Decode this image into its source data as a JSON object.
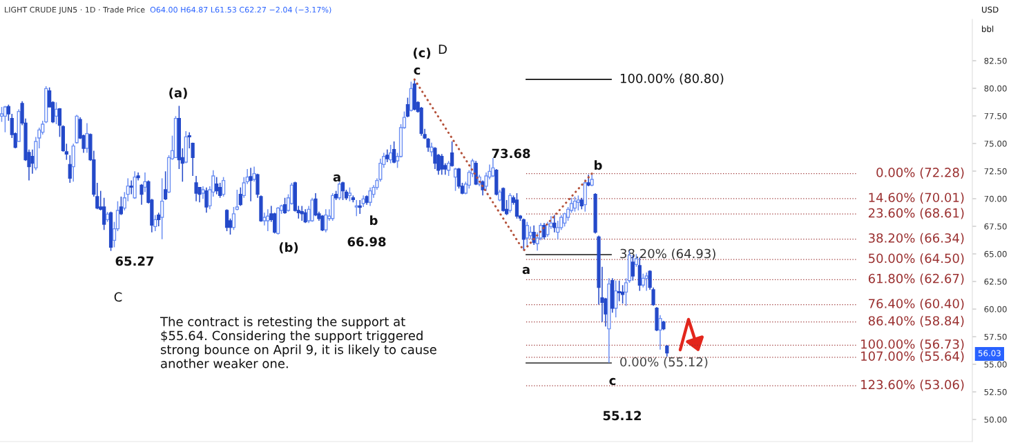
{
  "chart_data": {
    "type": "candlestick",
    "title": "LIGHT CRUDE JUN5 · 1D · Trade Price",
    "subtitle": "O64.00 H64.87 L61.53 C62.27 −2.04 (−3.17%)",
    "categories": [
      null,
      null,
      null,
      null,
      null,
      null,
      null,
      null,
      null,
      null,
      null,
      null,
      null,
      null,
      null,
      null,
      null,
      null,
      null,
      null,
      null,
      null,
      null,
      null,
      null,
      null,
      null,
      null,
      null,
      null,
      null,
      null,
      null,
      null,
      null,
      null,
      null,
      null,
      null,
      null,
      null,
      null,
      null,
      null,
      null,
      null,
      null,
      null,
      null,
      null,
      null,
      null,
      null,
      null,
      null,
      null,
      null,
      null,
      null,
      null,
      null,
      null,
      null,
      null,
      null,
      null,
      null,
      null,
      null,
      null,
      null,
      null,
      null,
      null,
      null,
      null,
      null,
      null,
      null,
      null,
      null,
      null,
      null,
      null,
      null,
      null,
      null,
      null,
      null,
      null,
      null,
      null,
      null,
      null,
      null,
      null,
      null,
      null,
      null,
      null,
      null,
      null,
      null,
      null,
      null,
      null,
      null,
      null,
      null,
      null,
      null,
      null,
      null,
      null,
      null,
      null,
      null,
      null,
      null,
      null,
      null,
      null,
      null,
      null,
      null,
      null,
      null,
      null,
      null,
      null,
      null,
      null,
      null,
      null,
      null,
      null,
      null,
      null,
      null,
      null,
      null,
      null,
      null,
      null,
      null,
      null,
      null,
      null,
      null,
      null,
      null,
      null,
      null,
      null,
      null,
      null,
      null,
      null,
      null,
      null,
      null,
      null,
      null,
      null,
      null,
      null,
      null,
      null,
      null,
      null,
      null,
      null,
      null,
      null,
      null,
      null,
      null,
      null,
      null,
      null,
      null,
      null,
      null,
      null,
      null,
      null,
      null,
      null,
      null,
      null,
      null,
      null,
      null,
      null,
      null,
      null,
      null,
      null,
      null,
      null,
      null,
      null,
      null,
      null,
      null,
      null,
      null,
      null,
      null,
      null,
      null,
      null,
      null,
      null,
      null,
      null,
      null,
      null,
      null,
      null,
      null,
      null,
      null,
      null,
      null,
      null,
      null,
      null,
      null,
      null,
      null,
      null,
      null,
      null,
      null,
      null,
      null,
      null,
      null,
      null,
      null,
      null,
      null,
      null,
      null,
      null,
      null,
      null,
      null,
      null,
      null,
      null,
      null,
      null,
      null,
      null,
      null,
      null,
      null,
      null,
      null,
      null,
      null,
      null,
      null,
      null,
      null,
      null,
      null,
      null,
      null,
      null,
      null,
      null,
      null,
      null,
      null,
      null,
      null,
      null,
      null,
      null,
      null,
      null,
      null
    ],
    "ohlc": [
      [
        77.48,
        78.31,
        76.96,
        77.69
      ],
      [
        77.48,
        78.41,
        76.02,
        78.31
      ],
      [
        78.35,
        78.52,
        77.06,
        77.69
      ],
      [
        77.27,
        77.69,
        75.5,
        75.81
      ],
      [
        75.9,
        76.0,
        74.56,
        74.66
      ],
      [
        75.19,
        78.1,
        75.19,
        77.9
      ],
      [
        78.63,
        78.83,
        76.65,
        76.85
      ],
      [
        76.85,
        77.27,
        73.42,
        73.52
      ],
      [
        74.19,
        74.46,
        71.65,
        72.9
      ],
      [
        73.83,
        74.46,
        72.27,
        73.21
      ],
      [
        72.79,
        75.6,
        72.58,
        75.19
      ],
      [
        75.5,
        76.44,
        74.56,
        76.23
      ],
      [
        76.02,
        77.06,
        75.81,
        76.75
      ],
      [
        76.96,
        80.19,
        76.85,
        79.98
      ],
      [
        79.77,
        80.08,
        78.31,
        78.31
      ],
      [
        78.73,
        78.83,
        76.85,
        76.96
      ],
      [
        77.48,
        78.73,
        76.75,
        78.1
      ],
      [
        78.15,
        78.21,
        75.6,
        76.65
      ],
      [
        76.54,
        76.65,
        74.25,
        74.35
      ],
      [
        74.25,
        74.98,
        73.52,
        74.04
      ],
      [
        73.1,
        73.94,
        71.44,
        71.85
      ],
      [
        72.9,
        74.98,
        71.54,
        74.77
      ],
      [
        75.08,
        77.6,
        74.98,
        77.48
      ],
      [
        77.17,
        77.37,
        75.4,
        75.5
      ],
      [
        75.71,
        75.81,
        74.15,
        74.56
      ],
      [
        74.56,
        76.85,
        74.15,
        75.9
      ],
      [
        75.81,
        75.9,
        73.42,
        73.52
      ],
      [
        73.52,
        74.35,
        70.19,
        70.4
      ],
      [
        70.19,
        71.44,
        69.04,
        69.15
      ],
      [
        69.25,
        70.71,
        68.94,
        69.04
      ],
      [
        69.25,
        70.08,
        67.17,
        67.69
      ],
      [
        68.1,
        68.8,
        67.9,
        68.6
      ],
      [
        68.73,
        68.83,
        65.27,
        65.6
      ],
      [
        66.23,
        67.9,
        65.6,
        67.27
      ],
      [
        67.27,
        69.77,
        67.06,
        68.94
      ],
      [
        69.25,
        70.19,
        68.52,
        68.63
      ],
      [
        69.15,
        70.6,
        68.94,
        70.08
      ],
      [
        70.4,
        71.85,
        69.77,
        71.15
      ],
      [
        71.15,
        71.65,
        70.4,
        71.04
      ],
      [
        70.08,
        72.48,
        69.98,
        71.96
      ],
      [
        72.06,
        72.38,
        71.65,
        71.9
      ],
      [
        71.23,
        71.33,
        69.46,
        70.4
      ],
      [
        71.04,
        72.38,
        70.6,
        71.54
      ],
      [
        71.54,
        71.65,
        69.56,
        69.67
      ],
      [
        69.88,
        69.98,
        66.96,
        67.6
      ],
      [
        67.48,
        68.52,
        67.06,
        68.1
      ],
      [
        68.52,
        68.73,
        67.5,
        68.1
      ],
      [
        68.31,
        71.85,
        66.33,
        69.77
      ],
      [
        70.81,
        72.48,
        69.88,
        69.98
      ],
      [
        70.6,
        73.94,
        70.5,
        73.73
      ],
      [
        73.62,
        75.71,
        73.52,
        74.35
      ],
      [
        73.73,
        77.48,
        73.73,
        77.27
      ],
      [
        77.27,
        78.41,
        72.69,
        73.52
      ],
      [
        73.73,
        74.56,
        71.54,
        73.21
      ],
      [
        73.31,
        76.12,
        73.21,
        75.6
      ],
      [
        75.71,
        76.02,
        74.56,
        75.6
      ],
      [
        75.02,
        75.08,
        72.06,
        73.73
      ],
      [
        71.44,
        72.06,
        69.77,
        70.5
      ],
      [
        71.02,
        71.02,
        69.67,
        70.4
      ],
      [
        70.5,
        71.13,
        69.98,
        70.81
      ],
      [
        70.71,
        71.02,
        68.73,
        69.25
      ],
      [
        69.35,
        71.13,
        69.04,
        70.81
      ],
      [
        70.6,
        72.58,
        70.19,
        72.06
      ],
      [
        71.33,
        71.96,
        70.4,
        70.71
      ],
      [
        71.02,
        71.44,
        70.08,
        70.29
      ],
      [
        70.4,
        71.96,
        70.19,
        71.65
      ],
      [
        68.94,
        69.04,
        67.06,
        67.4
      ],
      [
        68.0,
        68.2,
        66.75,
        67.4
      ],
      [
        67.4,
        69.25,
        67.17,
        68.63
      ],
      [
        69.04,
        70.81,
        68.94,
        69.25
      ],
      [
        70.4,
        71.02,
        69.35,
        69.46
      ],
      [
        70.29,
        71.96,
        70.08,
        71.44
      ],
      [
        71.54,
        72.69,
        71.33,
        71.96
      ],
      [
        72.0,
        72.79,
        69.77,
        71.65
      ],
      [
        71.75,
        72.9,
        71.54,
        72.27
      ],
      [
        72.17,
        72.27,
        70.08,
        70.4
      ],
      [
        70.19,
        70.29,
        67.9,
        68.0
      ],
      [
        68.0,
        68.73,
        67.58,
        68.31
      ],
      [
        68.0,
        69.04,
        67.06,
        68.42
      ],
      [
        68.63,
        69.35,
        67.9,
        68.1
      ],
      [
        68.63,
        68.73,
        66.85,
        66.96
      ],
      [
        66.85,
        69.25,
        66.75,
        69.15
      ],
      [
        68.94,
        69.46,
        68.63,
        69.35
      ],
      [
        69.46,
        70.08,
        68.63,
        68.73
      ],
      [
        68.94,
        70.4,
        68.83,
        70.08
      ],
      [
        69.56,
        71.44,
        69.46,
        71.23
      ],
      [
        71.44,
        71.54,
        68.83,
        68.94
      ],
      [
        68.94,
        69.35,
        68.2,
        68.73
      ],
      [
        68.83,
        69.35,
        68.0,
        68.63
      ],
      [
        68.73,
        69.04,
        67.79,
        67.9
      ],
      [
        68.0,
        69.35,
        67.79,
        69.04
      ],
      [
        68.0,
        70.08,
        67.9,
        69.88
      ],
      [
        69.98,
        70.5,
        68.42,
        68.52
      ],
      [
        68.63,
        68.83,
        68.0,
        68.2
      ],
      [
        68.42,
        68.52,
        67.06,
        67.17
      ],
      [
        67.17,
        69.04,
        66.96,
        68.52
      ],
      [
        68.2,
        69.04,
        68.0,
        68.42
      ],
      [
        68.2,
        70.5,
        68.0,
        70.29
      ],
      [
        70.4,
        70.71,
        69.88,
        70.08
      ],
      [
        70.08,
        71.54,
        69.88,
        71.33
      ],
      [
        71.44,
        71.54,
        69.88,
        70.71
      ],
      [
        70.6,
        70.81,
        69.88,
        70.08
      ],
      [
        70.29,
        71.02,
        69.77,
        70.5
      ],
      [
        70.08,
        70.29,
        69.67,
        69.92
      ],
      [
        69.25,
        69.88,
        68.42,
        69.35
      ],
      [
        69.35,
        69.88,
        68.63,
        69.21
      ],
      [
        69.56,
        70.29,
        69.25,
        69.98
      ],
      [
        70.19,
        70.29,
        69.46,
        69.67
      ],
      [
        69.67,
        71.02,
        69.35,
        70.71
      ],
      [
        70.4,
        71.23,
        70.08,
        71.02
      ],
      [
        71.02,
        71.85,
        70.81,
        71.65
      ],
      [
        71.75,
        73.62,
        71.54,
        73.21
      ],
      [
        73.1,
        74.15,
        72.79,
        73.83
      ],
      [
        73.94,
        74.46,
        73.31,
        73.62
      ],
      [
        73.52,
        74.88,
        73.21,
        74.15
      ],
      [
        74.46,
        75.19,
        73.21,
        73.31
      ],
      [
        73.42,
        74.15,
        72.79,
        73.83
      ],
      [
        73.83,
        76.75,
        73.73,
        76.44
      ],
      [
        76.44,
        77.9,
        76.33,
        77.37
      ],
      [
        78.52,
        79.15,
        77.37,
        77.48
      ],
      [
        78.0,
        80.6,
        77.9,
        79.98
      ],
      [
        80.4,
        80.8,
        78.0,
        78.1
      ],
      [
        78.73,
        78.83,
        77.79,
        77.9
      ],
      [
        78.21,
        78.31,
        75.71,
        75.92
      ],
      [
        75.81,
        76.33,
        75.4,
        75.5
      ],
      [
        75.4,
        75.5,
        74.25,
        74.67
      ],
      [
        74.25,
        75.08,
        73.83,
        74.67
      ],
      [
        74.56,
        74.67,
        72.69,
        73.21
      ],
      [
        73.94,
        74.04,
        72.17,
        72.58
      ],
      [
        73.83,
        74.04,
        72.17,
        72.69
      ],
      [
        73.0,
        73.21,
        72.17,
        72.69
      ],
      [
        72.58,
        73.42,
        72.06,
        73.21
      ],
      [
        74.15,
        75.19,
        72.9,
        73.0
      ],
      [
        71.96,
        72.79,
        70.71,
        72.69
      ],
      [
        72.69,
        72.79,
        70.92,
        71.13
      ],
      [
        71.13,
        71.44,
        70.4,
        70.5
      ],
      [
        70.5,
        71.54,
        70.4,
        71.33
      ],
      [
        71.23,
        72.58,
        70.92,
        72.38
      ],
      [
        72.27,
        73.62,
        71.96,
        73.42
      ],
      [
        73.21,
        73.42,
        71.23,
        71.33
      ],
      [
        71.33,
        72.17,
        71.13,
        71.96
      ],
      [
        71.54,
        71.65,
        70.29,
        70.81
      ],
      [
        71.13,
        72.38,
        70.71,
        72.06
      ],
      [
        71.96,
        73.1,
        71.75,
        72.48
      ],
      [
        72.06,
        73.68,
        71.96,
        72.79
      ],
      [
        72.58,
        72.69,
        70.29,
        70.4
      ],
      [
        69.88,
        70.81,
        69.77,
        70.6
      ],
      [
        70.92,
        71.02,
        68.83,
        68.94
      ],
      [
        69.04,
        69.88,
        68.52,
        68.63
      ],
      [
        68.94,
        70.5,
        68.73,
        70.29
      ],
      [
        70.08,
        70.29,
        69.46,
        69.67
      ],
      [
        69.88,
        70.5,
        68.2,
        68.42
      ],
      [
        68.42,
        68.52,
        68.0,
        68.25
      ],
      [
        68.1,
        68.2,
        65.3,
        66.33
      ],
      [
        66.44,
        67.9,
        65.71,
        67.58
      ],
      [
        66.65,
        67.48,
        66.33,
        66.96
      ],
      [
        66.96,
        67.58,
        65.81,
        66.02
      ],
      [
        65.92,
        66.96,
        65.29,
        66.44
      ],
      [
        66.44,
        67.79,
        66.23,
        67.58
      ],
      [
        67.58,
        67.79,
        66.33,
        66.54
      ],
      [
        66.75,
        67.9,
        66.54,
        67.69
      ],
      [
        67.48,
        68.42,
        67.27,
        67.79
      ],
      [
        67.79,
        68.52,
        66.96,
        67.38
      ],
      [
        66.96,
        68.0,
        66.33,
        67.38
      ],
      [
        67.38,
        68.52,
        67.17,
        68.31
      ],
      [
        67.79,
        68.73,
        67.48,
        68.63
      ],
      [
        68.31,
        69.25,
        68.0,
        69.04
      ],
      [
        68.94,
        70.08,
        68.73,
        69.56
      ],
      [
        69.15,
        70.19,
        68.83,
        69.77
      ],
      [
        69.67,
        70.29,
        68.94,
        69.88
      ],
      [
        69.88,
        70.08,
        69.04,
        69.35
      ],
      [
        69.46,
        71.75,
        68.83,
        71.44
      ],
      [
        71.44,
        72.17,
        71.13,
        71.23
      ],
      [
        71.23,
        72.28,
        71.13,
        71.75
      ],
      [
        70.4,
        70.5,
        66.85,
        66.96
      ],
      [
        66.54,
        66.65,
        60.4,
        61.96
      ],
      [
        61.02,
        63.83,
        58.83,
        60.6
      ],
      [
        60.92,
        61.02,
        58.42,
        59.56
      ],
      [
        58.21,
        62.79,
        55.12,
        62.27
      ],
      [
        62.58,
        62.79,
        59.67,
        60.08
      ],
      [
        60.08,
        62.58,
        59.25,
        61.65
      ],
      [
        61.58,
        62.58,
        60.71,
        61.48
      ],
      [
        61.54,
        62.17,
        60.5,
        61.33
      ],
      [
        61.54,
        62.79,
        60.29,
        62.38
      ],
      [
        62.58,
        65.29,
        62.38,
        64.88
      ],
      [
        64.25,
        64.88,
        62.58,
        63.0
      ],
      [
        64.04,
        64.98,
        63.83,
        64.56
      ],
      [
        63.94,
        64.67,
        61.65,
        62.17
      ],
      [
        62.17,
        63.21,
        61.96,
        62.79
      ],
      [
        62.79,
        63.31,
        61.65,
        63.0
      ],
      [
        63.42,
        63.52,
        61.75,
        61.96
      ],
      [
        61.75,
        61.96,
        60.29,
        60.4
      ],
      [
        60.08,
        60.19,
        58.0,
        58.1
      ],
      [
        58.1,
        59.46,
        56.33,
        59.15
      ],
      [
        58.83,
        58.94,
        58.1,
        58.21
      ],
      [
        56.65,
        56.75,
        55.71,
        56.03
      ],
      null,
      null,
      null,
      null,
      null,
      null,
      null,
      null,
      null,
      null,
      null,
      null,
      null,
      null,
      null,
      null,
      null,
      null,
      null,
      null,
      null,
      null,
      null,
      null,
      null,
      null,
      null,
      null,
      null,
      null,
      null,
      null,
      null,
      null,
      null,
      null,
      null,
      null,
      null,
      null,
      null,
      null,
      null,
      null,
      null,
      null,
      null,
      null,
      null,
      null,
      null,
      null,
      null,
      null,
      null,
      null,
      null,
      null,
      null,
      null,
      null,
      null,
      null,
      null,
      null,
      null,
      null,
      null,
      null,
      null,
      null,
      null,
      null,
      null,
      null,
      null,
      null,
      null,
      null,
      null,
      null,
      null,
      null,
      null,
      null,
      null,
      null,
      null,
      null
    ],
    "colors": [
      "#6b8ef2",
      "#6b8ef2",
      "#2449c9",
      "#2449c9",
      "#2449c9",
      "#6b8ef2",
      "#2449c9",
      "#2449c9",
      "#2449c9",
      "#2449c9",
      "#6b8ef2",
      "#6b8ef2",
      "#6b8ef2",
      "#6b8ef2",
      "#2449c9",
      "#2449c9",
      "#6b8ef2",
      "#2449c9",
      "#2449c9",
      "#2449c9",
      "#2449c9",
      "#6b8ef2",
      "#6b8ef2",
      "#2449c9",
      "#2449c9",
      "#6b8ef2",
      "#2449c9",
      "#2449c9",
      "#2449c9",
      "#2449c9",
      "#2449c9",
      "#6b8ef2",
      "#2449c9",
      "#6b8ef2",
      "#6b8ef2",
      "#2449c9",
      "#6b8ef2",
      "#6b8ef2",
      "#2449c9",
      "#6b8ef2",
      "#2449c9",
      "#2449c9",
      "#6b8ef2",
      "#2449c9",
      "#2449c9",
      "#6b8ef2",
      "#2449c9",
      "#6b8ef2",
      "#2449c9",
      "#6b8ef2",
      "#6b8ef2",
      "#6b8ef2",
      "#2449c9",
      "#2449c9",
      "#6b8ef2",
      "#2449c9",
      "#2449c9",
      "#2449c9",
      "#2449c9",
      "#6b8ef2",
      "#2449c9",
      "#6b8ef2",
      "#6b8ef2",
      "#2449c9",
      "#2449c9",
      "#6b8ef2",
      "#2449c9",
      "#2449c9",
      "#6b8ef2",
      "#6b8ef2",
      "#2449c9",
      "#6b8ef2",
      "#6b8ef2",
      "#2449c9",
      "#6b8ef2",
      "#2449c9",
      "#2449c9",
      "#6b8ef2",
      "#6b8ef2",
      "#2449c9",
      "#2449c9",
      "#6b8ef2",
      "#6b8ef2",
      "#2449c9",
      "#6b8ef2",
      "#6b8ef2",
      "#2449c9",
      "#2449c9",
      "#2449c9",
      "#2449c9",
      "#6b8ef2",
      "#6b8ef2",
      "#2449c9",
      "#2449c9",
      "#2449c9",
      "#6b8ef2",
      "#6b8ef2",
      "#6b8ef2",
      "#2449c9",
      "#6b8ef2",
      "#2449c9",
      "#2449c9",
      "#6b8ef2",
      "#2449c9",
      "#6b8ef2",
      "#2449c9",
      "#6b8ef2",
      "#2449c9",
      "#6b8ef2",
      "#6b8ef2",
      "#6b8ef2",
      "#6b8ef2",
      "#6b8ef2",
      "#2449c9",
      "#6b8ef2",
      "#2449c9",
      "#6b8ef2",
      "#6b8ef2",
      "#6b8ef2",
      "#2449c9",
      "#6b8ef2",
      "#2449c9",
      "#2449c9",
      "#2449c9",
      "#2449c9",
      "#2449c9",
      "#6b8ef2",
      "#2449c9",
      "#2449c9",
      "#2449c9",
      "#2449c9",
      "#6b8ef2",
      "#2449c9",
      "#6b8ef2",
      "#2449c9",
      "#2449c9",
      "#6b8ef2",
      "#6b8ef2",
      "#6b8ef2",
      "#2449c9",
      "#6b8ef2",
      "#2449c9",
      "#6b8ef2",
      "#6b8ef2",
      "#6b8ef2",
      "#2449c9",
      "#6b8ef2",
      "#2449c9",
      "#2449c9",
      "#6b8ef2",
      "#2449c9",
      "#2449c9",
      "#2449c9",
      "#2449c9",
      "#6b8ef2",
      "#6b8ef2",
      "#2449c9",
      "#6b8ef2",
      "#6b8ef2",
      "#2449c9",
      "#6b8ef2",
      "#6b8ef2",
      "#2449c9",
      "#6b8ef2",
      "#6b8ef2",
      "#6b8ef2",
      "#6b8ef2",
      "#6b8ef2",
      "#6b8ef2",
      "#6b8ef2",
      "#2449c9",
      "#6b8ef2",
      "#2449c9",
      "#6b8ef2",
      "#2449c9",
      "#2449c9",
      "#2449c9",
      "#2449c9",
      "#6b8ef2",
      "#2449c9",
      "#6b8ef2",
      "#2449c9",
      "#2449c9",
      "#6b8ef2",
      "#6b8ef2",
      "#2449c9",
      "#6b8ef2",
      "#2449c9",
      "#6b8ef2",
      "#6b8ef2",
      "#2449c9",
      "#2449c9",
      "#2449c9",
      "#6b8ef2",
      "#2449c9",
      "#2449c9",
      null,
      null,
      null,
      null,
      null,
      null,
      null,
      null,
      null,
      null,
      null,
      null,
      null,
      null,
      null,
      null,
      null,
      null,
      null,
      null,
      null,
      null,
      null,
      null,
      null,
      null,
      null,
      null,
      null,
      null,
      null,
      null,
      null,
      null,
      null,
      null,
      null,
      null,
      null,
      null,
      null,
      null,
      null,
      null,
      null,
      null,
      null,
      null,
      null,
      null,
      null,
      null,
      null,
      null,
      null,
      null,
      null,
      null,
      null,
      null,
      null,
      null,
      null,
      null,
      null,
      null,
      null,
      null,
      null,
      null,
      null,
      null,
      null,
      null,
      null,
      null,
      null,
      null,
      null,
      null,
      null,
      null,
      null,
      null,
      null,
      null,
      null,
      null,
      null
    ],
    "series": [
      {
        "type": "line",
        "color": "#b5533c",
        "line_style": "dotted",
        "values": [
          null,
          null,
          null,
          null,
          null,
          null,
          null,
          null,
          null,
          null,
          null,
          null,
          null,
          null,
          null,
          null,
          null,
          null,
          null,
          null,
          null,
          null,
          null,
          null,
          null,
          null,
          null,
          null,
          null,
          null,
          null,
          null,
          null,
          null,
          null,
          null,
          null,
          null,
          null,
          null,
          null,
          null,
          null,
          null,
          null,
          null,
          null,
          null,
          null,
          null,
          null,
          null,
          null,
          null,
          null,
          null,
          null,
          null,
          null,
          null,
          null,
          null,
          null,
          null,
          null,
          null,
          null,
          null,
          null,
          null,
          null,
          null,
          null,
          null,
          null,
          null,
          null,
          null,
          null,
          null,
          null,
          null,
          null,
          null,
          null,
          null,
          null,
          null,
          null,
          null,
          null,
          null,
          null,
          null,
          null,
          null,
          null,
          null,
          null,
          null,
          null,
          null,
          null,
          null,
          null,
          null,
          null,
          null,
          null,
          null,
          null,
          null,
          null,
          null,
          null,
          null,
          null,
          null,
          null,
          null,
          null,
          80.8,
          null,
          null,
          null,
          null,
          null,
          null,
          null,
          null,
          null,
          null,
          null,
          null,
          null,
          null,
          null,
          null,
          null,
          null,
          null,
          null,
          null,
          null,
          null,
          null,
          null,
          null,
          null,
          null,
          null,
          null,
          null,
          65.3,
          null,
          null,
          null,
          null,
          null,
          null,
          null,
          null,
          null,
          null,
          null,
          null,
          null,
          null,
          null,
          null,
          null,
          null,
          null,
          72.28,
          null,
          null,
          null,
          null,
          null,
          null,
          null,
          null,
          null,
          null,
          null,
          null,
          null,
          null,
          null,
          null,
          null,
          null,
          null,
          null,
          null,
          null,
          null,
          null,
          null,
          null,
          null,
          null,
          null,
          null,
          null,
          null,
          null,
          null,
          null,
          null,
          null,
          null,
          null,
          null,
          null,
          null,
          null,
          null,
          null,
          null,
          null,
          null,
          null,
          null,
          null,
          null,
          null,
          null,
          null,
          null,
          null,
          null,
          null,
          null,
          null,
          null,
          null,
          null,
          null,
          null,
          null,
          null,
          null,
          null,
          null,
          null,
          null,
          null,
          null,
          null,
          null,
          null,
          null,
          null,
          null,
          null,
          null,
          null,
          null,
          null,
          null,
          null,
          null,
          null,
          null,
          null,
          null,
          null,
          null,
          null,
          null,
          null,
          null,
          null,
          null,
          null,
          null,
          null,
          null,
          null,
          null,
          null,
          null,
          null,
          null
        ]
      }
    ],
    "ylim": [
      48.0,
      86.25
    ],
    "yticks": [
      {
        "value": 50,
        "label": "50.00"
      },
      {
        "value": 52.5,
        "label": "52.50"
      },
      {
        "value": 55,
        "label": "55.00"
      },
      {
        "value": 57.5,
        "label": "57.50"
      },
      {
        "value": 60,
        "label": "60.00"
      },
      {
        "value": 62.5,
        "label": "62.50"
      },
      {
        "value": 65,
        "label": "65.00"
      },
      {
        "value": 67.5,
        "label": "67.50"
      },
      {
        "value": 70,
        "label": "70.00"
      },
      {
        "value": 72.5,
        "label": "72.50"
      },
      {
        "value": 75,
        "label": "75.00"
      },
      {
        "value": 77.5,
        "label": "77.50"
      },
      {
        "value": 80,
        "label": "80.00"
      },
      {
        "value": 82.5,
        "label": "82.50"
      }
    ],
    "tick_labels": "y",
    "ref_lines": [
      {
        "axis": "y",
        "value": 80.8,
        "label": "100.00% (80.80)",
        "color": "#111111",
        "line_style": "solid"
      },
      {
        "axis": "y",
        "value": 64.93,
        "label": "38.20% (64.93)",
        "color": "#333333",
        "line_style": "solid"
      },
      {
        "axis": "y",
        "value": 55.12,
        "label": "0.00% (55.12)",
        "color": "#444444",
        "line_style": "solid"
      },
      {
        "axis": "y",
        "value": 72.28,
        "label": "0.00% (72.28)",
        "color": "#9a3030",
        "line_style": "dotted"
      },
      {
        "axis": "y",
        "value": 70.01,
        "label": "14.60% (70.01)",
        "color": "#9a3030",
        "line_style": "dotted"
      },
      {
        "axis": "y",
        "value": 68.61,
        "label": "23.60% (68.61)",
        "color": "#9a3030",
        "line_style": "dotted"
      },
      {
        "axis": "y",
        "value": 66.34,
        "label": "38.20% (66.34)",
        "color": "#9a3030",
        "line_style": "dotted"
      },
      {
        "axis": "y",
        "value": 64.5,
        "label": "50.00% (64.50)",
        "color": "#9a3030",
        "line_style": "dotted"
      },
      {
        "axis": "y",
        "value": 62.67,
        "label": "61.80% (62.67)",
        "color": "#9a3030",
        "line_style": "dotted"
      },
      {
        "axis": "y",
        "value": 60.4,
        "label": "76.40% (60.40)",
        "color": "#9a3030",
        "line_style": "dotted"
      },
      {
        "axis": "y",
        "value": 58.84,
        "label": "86.40% (58.84)",
        "color": "#9a3030",
        "line_style": "dotted"
      },
      {
        "axis": "y",
        "value": 56.73,
        "label": "100.00% (56.73)",
        "color": "#9a3030",
        "line_style": "dotted"
      },
      {
        "axis": "y",
        "value": 55.64,
        "label": "107.00% (55.64)",
        "color": "#9a3030",
        "line_style": "dotted"
      },
      {
        "axis": "y",
        "value": 53.06,
        "label": "123.60% (53.06)",
        "color": "#9a3030",
        "line_style": "dotted"
      }
    ],
    "annotations": [
      "USD",
      "bbl",
      "56.03",
      "(c)",
      "D",
      "c",
      "(a)",
      "a",
      "b",
      "66.98",
      "(b)",
      "65.27",
      "C",
      "73.68",
      "b",
      "a",
      "c",
      "55.12",
      "The contract is retesting the support at\n$55.64. Considering the support triggered\nstrong bounce on April 9, it is likely to cause\nanother weaker one."
    ]
  }
}
